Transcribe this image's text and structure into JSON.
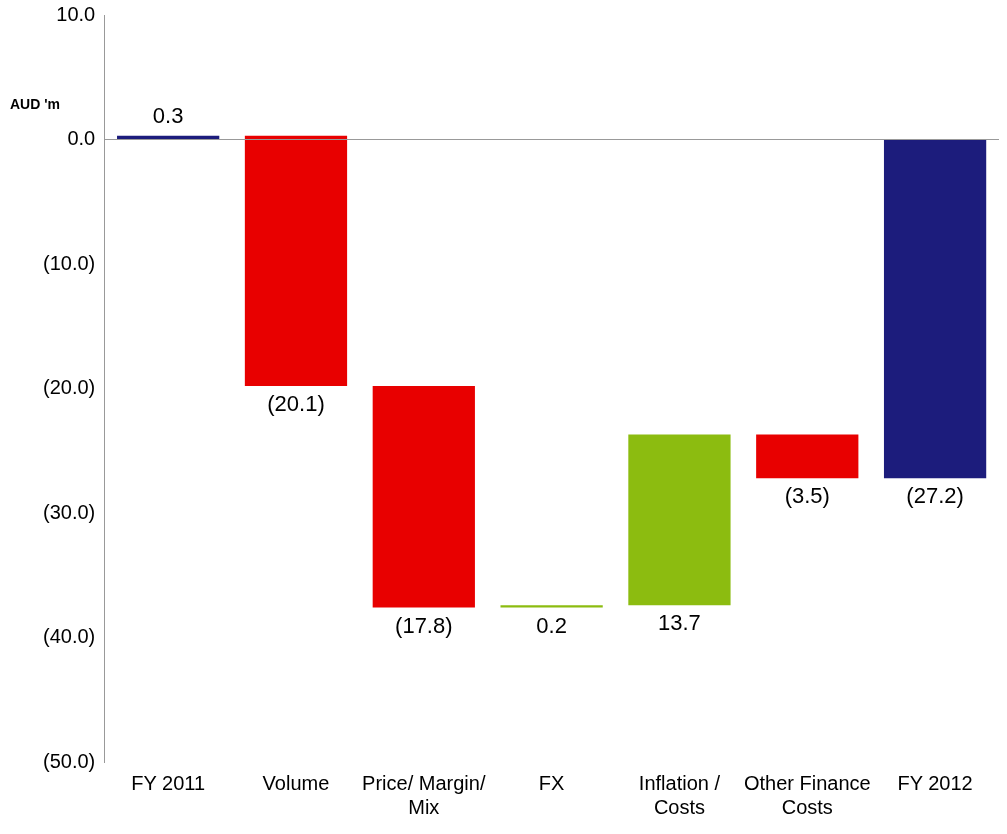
{
  "chart_data": {
    "type": "bar",
    "ylabel": "AUD 'm",
    "categories": [
      "FY 2011",
      "Volume",
      "Price/ Margin/ Mix",
      "FX",
      "Inflation / Costs",
      "Other Finance Costs",
      "FY 2012"
    ],
    "values": [
      0.3,
      -20.1,
      -17.8,
      0.2,
      13.7,
      -3.5,
      -27.2
    ],
    "base": [
      0,
      0.3,
      -19.8,
      -37.6,
      -37.4,
      -23.7,
      0
    ],
    "colors": [
      "#1c1c7c",
      "#e80000",
      "#e80000",
      "#8cbc10",
      "#8cbc10",
      "#e80000",
      "#1c1c7c"
    ],
    "value_labels": [
      "0.3",
      "(20.1)",
      "(17.8)",
      "0.2",
      "13.7",
      "(3.5)",
      "(27.2)"
    ],
    "ylim": [
      -50,
      10
    ],
    "yticks": [
      {
        "value": 10,
        "label": "10.0"
      },
      {
        "value": 0,
        "label": "0.0"
      },
      {
        "value": -10,
        "label": "(10.0)"
      },
      {
        "value": -20,
        "label": "(20.0)"
      },
      {
        "value": -30,
        "label": "(30.0)"
      },
      {
        "value": -40,
        "label": "(40.0)"
      },
      {
        "value": -50,
        "label": "(50.0)"
      }
    ],
    "ref_lines": [
      {
        "axis": "y",
        "value": 0,
        "color": "#999999"
      }
    ],
    "grid": false,
    "legend": false
  }
}
